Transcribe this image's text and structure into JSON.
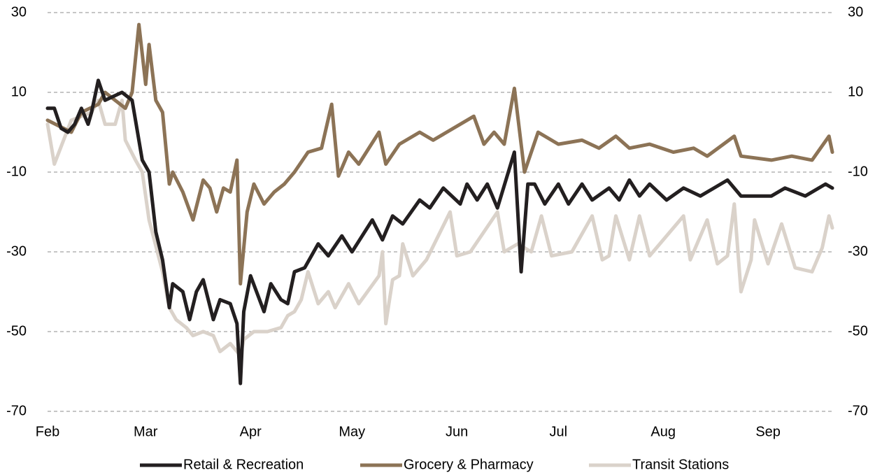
{
  "chart_data": {
    "type": "line",
    "xlim": [
      0,
      232
    ],
    "xticks": [
      {
        "value": 0,
        "label": "Feb"
      },
      {
        "value": 29,
        "label": "Mar"
      },
      {
        "value": 60,
        "label": "Apr"
      },
      {
        "value": 90,
        "label": "May"
      },
      {
        "value": 121,
        "label": "Jun"
      },
      {
        "value": 151,
        "label": "Jul"
      },
      {
        "value": 182,
        "label": "Aug"
      },
      {
        "value": 213,
        "label": "Sep"
      }
    ],
    "ylim": [
      -70,
      30
    ],
    "yticks": [
      30,
      10,
      -10,
      -30,
      -50,
      -70
    ],
    "grid": true,
    "legend": "bottom",
    "series": [
      {
        "name": "Transit Stations",
        "color": "#dad2ca",
        "x": [
          0,
          2,
          7,
          13,
          15,
          17,
          20,
          22,
          23,
          26,
          28,
          30,
          34,
          36,
          38,
          41,
          43,
          46,
          49,
          51,
          54,
          57,
          58,
          61,
          65,
          69,
          71,
          73,
          75,
          77,
          80,
          83,
          85,
          89,
          92,
          98,
          99,
          100,
          102,
          104,
          105,
          108,
          112,
          119,
          121,
          125,
          133,
          135,
          139,
          143,
          146,
          149,
          155,
          161,
          164,
          166,
          168,
          172,
          175,
          178,
          188,
          190,
          195,
          198,
          201,
          203,
          205,
          208,
          209,
          213,
          217,
          221,
          226,
          229,
          231,
          232
        ],
        "values": [
          2,
          -8,
          3,
          5,
          8,
          2,
          2,
          8,
          -2,
          -7,
          -10,
          -22,
          -35,
          -44,
          -47,
          -49,
          -51,
          -50,
          -51,
          -55,
          -53,
          -56,
          -52,
          -50,
          -50,
          -49,
          -46,
          -45,
          -42,
          -35,
          -43,
          -40,
          -44,
          -38,
          -43,
          -36,
          -30,
          -48,
          -37,
          -36,
          -28,
          -36,
          -32,
          -20,
          -31,
          -30,
          -20,
          -30,
          -28,
          -30,
          -21,
          -31,
          -30,
          -21,
          -32,
          -31,
          -21,
          -32,
          -21,
          -31,
          -21,
          -32,
          -22,
          -33,
          -31,
          -18,
          -40,
          -32,
          -22,
          -33,
          -23,
          -34,
          -35,
          -29,
          -21,
          -24
        ]
      },
      {
        "name": "Grocery & Pharmacy",
        "color": "#8c7356",
        "x": [
          0,
          7,
          10,
          15,
          17,
          23,
          25,
          27,
          29,
          30,
          32,
          34,
          36,
          37,
          40,
          43,
          46,
          48,
          50,
          52,
          54,
          56,
          57,
          59,
          61,
          64,
          67,
          70,
          73,
          77,
          81,
          84,
          86,
          89,
          92,
          98,
          100,
          104,
          110,
          114,
          126,
          129,
          132,
          135,
          138,
          141,
          145,
          151,
          158,
          163,
          168,
          172,
          178,
          185,
          191,
          195,
          203,
          205,
          214,
          220,
          226,
          231,
          232
        ],
        "values": [
          3,
          0,
          5,
          7,
          10,
          6,
          10,
          27,
          12,
          22,
          8,
          5,
          -13,
          -10,
          -15,
          -22,
          -12,
          -14,
          -20,
          -14,
          -15,
          -7,
          -38,
          -20,
          -13,
          -18,
          -15,
          -13,
          -10,
          -5,
          -4,
          7,
          -11,
          -5,
          -8,
          0,
          -8,
          -3,
          0,
          -2,
          4,
          -3,
          0,
          -3,
          11,
          -10,
          0,
          -3,
          -2,
          -4,
          -1,
          -4,
          -3,
          -5,
          -4,
          -6,
          -1,
          -6,
          -7,
          -6,
          -7,
          -1,
          -5
        ]
      },
      {
        "name": "Retail & Recreation",
        "color": "#231f20",
        "x": [
          0,
          2,
          4,
          6,
          8,
          10,
          12,
          13,
          15,
          17,
          22,
          25,
          28,
          30,
          32,
          34,
          36,
          37,
          40,
          42,
          44,
          46,
          49,
          51,
          54,
          56,
          57,
          58,
          60,
          64,
          66,
          69,
          71,
          73,
          76,
          80,
          83,
          87,
          90,
          96,
          99,
          102,
          105,
          110,
          113,
          117,
          122,
          124,
          127,
          130,
          133,
          138,
          140,
          142,
          144,
          147,
          151,
          154,
          158,
          161,
          166,
          169,
          172,
          175,
          178,
          183,
          188,
          193,
          201,
          205,
          214,
          218,
          224,
          230,
          232
        ],
        "values": [
          6,
          6,
          1,
          0,
          2,
          6,
          2,
          5,
          13,
          8,
          10,
          8,
          -7,
          -10,
          -25,
          -32,
          -44,
          -38,
          -40,
          -47,
          -40,
          -37,
          -47,
          -42,
          -43,
          -48,
          -63,
          -45,
          -36,
          -45,
          -38,
          -42,
          -43,
          -35,
          -34,
          -28,
          -31,
          -26,
          -30,
          -22,
          -27,
          -21,
          -23,
          -17,
          -19,
          -14,
          -18,
          -13,
          -17,
          -13,
          -19,
          -5,
          -35,
          -13,
          -13,
          -18,
          -13,
          -18,
          -13,
          -17,
          -14,
          -17,
          -12,
          -16,
          -13,
          -17,
          -14,
          -16,
          -12,
          -16,
          -16,
          -14,
          -16,
          -13,
          -14
        ]
      }
    ],
    "legend_order": [
      2,
      1,
      0
    ]
  }
}
